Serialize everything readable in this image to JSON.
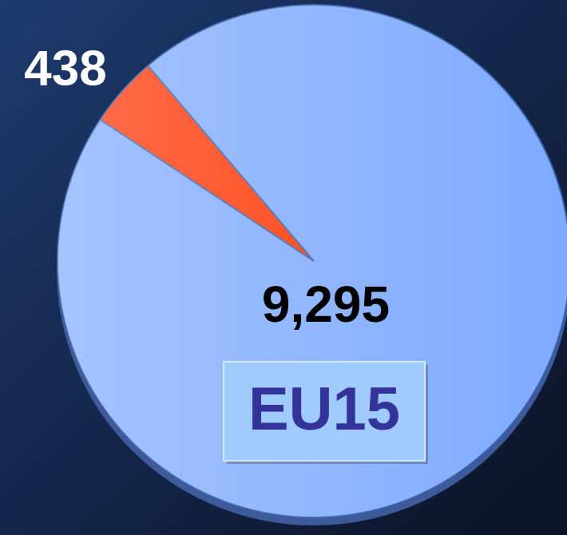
{
  "chart_data": {
    "type": "pie",
    "categories": [
      null,
      "EU15"
    ],
    "values": [
      438,
      9295
    ],
    "value_labels": [
      "438",
      "9,295"
    ],
    "colors": [
      "#ff3300",
      "#7eaaff"
    ]
  }
}
